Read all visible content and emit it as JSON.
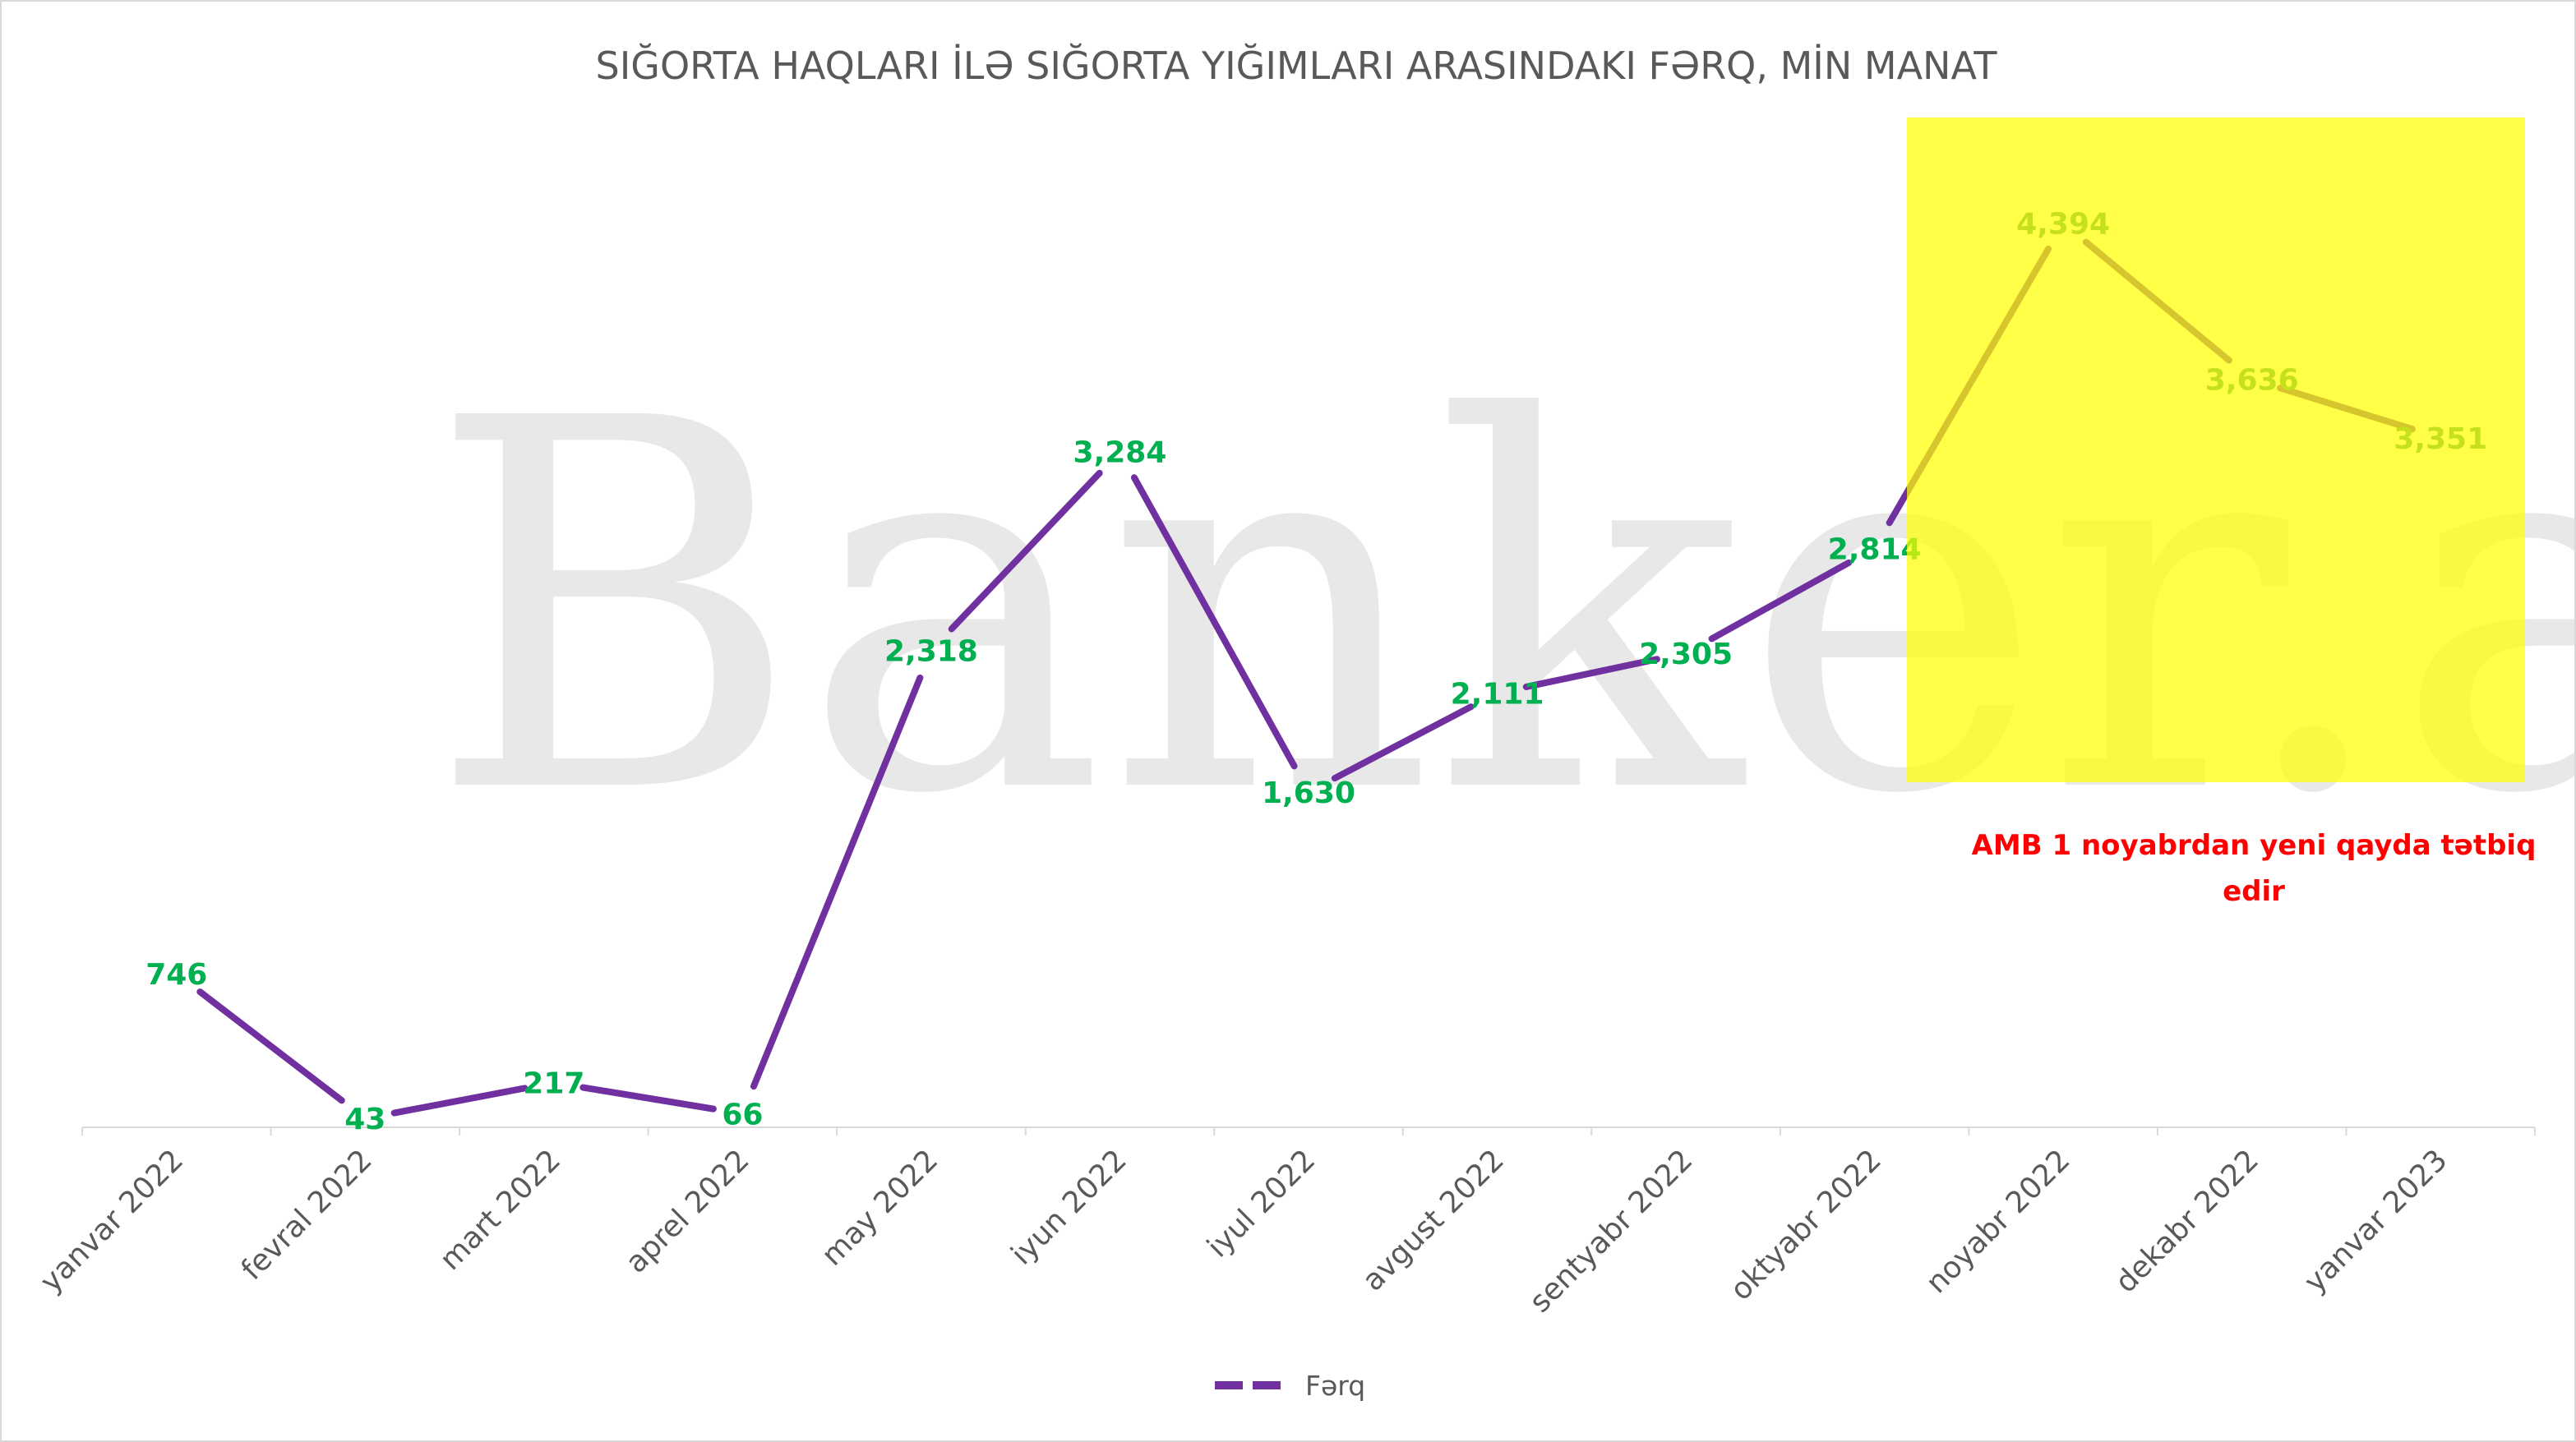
{
  "chart_data": {
    "type": "line",
    "title": "SIĞORTA HAQLARI İLƏ SIĞORTA YIĞIMLARI ARASINDAKI FƏRQ, MİN MANAT",
    "categories": [
      "yanvar 2022",
      "fevral 2022",
      "mart 2022",
      "aprel 2022",
      "may 2022",
      "iyun 2022",
      "iyul 2022",
      "avgust 2022",
      "sentyabr 2022",
      "oktyabr 2022",
      "noyabr 2022",
      "dekabr 2022",
      "yanvar 2023"
    ],
    "series": [
      {
        "name": "Fərq",
        "values": [
          746,
          43,
          217,
          66,
          2318,
          3284,
          1630,
          2111,
          2305,
          2814,
          4394,
          3636,
          3351
        ],
        "labels": [
          "746",
          "43",
          "217",
          "66",
          "2,318",
          "3,284",
          "1,630",
          "2,111",
          "2,305",
          "2,814",
          "4,394",
          "3,636",
          "3,351"
        ],
        "color": "#7030a0"
      }
    ],
    "ylim": [
      0,
      5000
    ],
    "grid": false,
    "legend": "bottom",
    "annotation": "AMB 1 noyabrdan yeni qayda tətbiq edir",
    "highlight_color": "#ffff00",
    "label_color": "#00b050",
    "watermark": "Banker.az"
  }
}
